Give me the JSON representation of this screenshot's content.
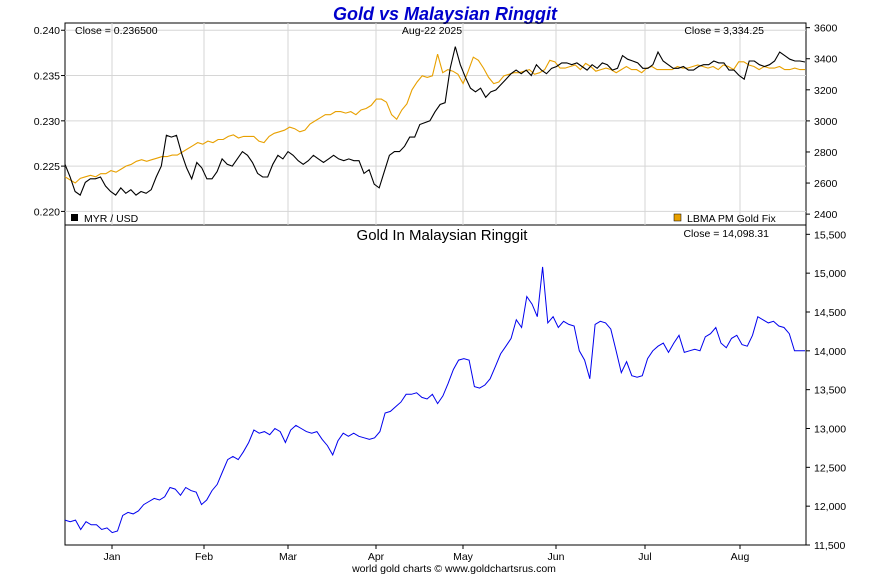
{
  "chart_data": [
    {
      "type": "line",
      "title": "Gold vs Malaysian Ringgit",
      "date_label": "Aug-22  2025",
      "close_left": "Close = 0.236500",
      "close_right": "Close = 3,334.25",
      "x_ticks": [
        "Jan",
        "Feb",
        "Mar",
        "Apr",
        "May",
        "Jun",
        "Jul",
        "Aug"
      ],
      "y_left": {
        "ylim": [
          0.2185,
          0.2408
        ],
        "ticks": [
          "0.220",
          "0.225",
          "0.230",
          "0.235",
          "0.240"
        ],
        "tick_values": [
          0.22,
          0.225,
          0.23,
          0.235,
          0.24
        ]
      },
      "y_right": {
        "ylim": [
          2330,
          3630
        ],
        "ticks": [
          "2400",
          "2600",
          "2800",
          "3000",
          "3200",
          "3400",
          "3600"
        ],
        "tick_values": [
          2400,
          2600,
          2800,
          3000,
          3200,
          3400,
          3600
        ]
      },
      "grid": true,
      "legend_position": "bottom",
      "series": [
        {
          "name": "MYR / USD",
          "color": "#000000",
          "axis": "left",
          "values": [
            0.2252,
            0.2238,
            0.2222,
            0.2218,
            0.2232,
            0.2236,
            0.2236,
            0.2238,
            0.2228,
            0.2222,
            0.2218,
            0.2226,
            0.222,
            0.2224,
            0.2218,
            0.2222,
            0.222,
            0.2224,
            0.2238,
            0.225,
            0.2284,
            0.2282,
            0.2284,
            0.2264,
            0.2248,
            0.2236,
            0.2254,
            0.2248,
            0.2236,
            0.2236,
            0.2244,
            0.2258,
            0.2252,
            0.225,
            0.2258,
            0.2266,
            0.2262,
            0.2254,
            0.2242,
            0.2238,
            0.2238,
            0.2252,
            0.2262,
            0.2258,
            0.2266,
            0.2262,
            0.2256,
            0.2252,
            0.2256,
            0.2262,
            0.2258,
            0.2254,
            0.2258,
            0.2262,
            0.2258,
            0.2256,
            0.2258,
            0.2256,
            0.2256,
            0.2242,
            0.2246,
            0.223,
            0.2226,
            0.2244,
            0.2262,
            0.2266,
            0.2266,
            0.2272,
            0.2282,
            0.2282,
            0.2296,
            0.2298,
            0.23,
            0.231,
            0.2318,
            0.232,
            0.2358,
            0.2382,
            0.2362,
            0.2348,
            0.2336,
            0.2332,
            0.2336,
            0.2326,
            0.2332,
            0.2334,
            0.234,
            0.2346,
            0.2352,
            0.2356,
            0.2352,
            0.2356,
            0.235,
            0.2362,
            0.2356,
            0.2352,
            0.2358,
            0.236,
            0.2364,
            0.2364,
            0.2362,
            0.2364,
            0.236,
            0.2356,
            0.2362,
            0.2358,
            0.2364,
            0.2362,
            0.2356,
            0.2358,
            0.2372,
            0.2368,
            0.2366,
            0.2364,
            0.2358,
            0.2358,
            0.2362,
            0.2376,
            0.2366,
            0.2362,
            0.2358,
            0.2358,
            0.236,
            0.2356,
            0.2356,
            0.236,
            0.2362,
            0.2362,
            0.2366,
            0.2364,
            0.2364,
            0.2356,
            0.2356,
            0.235,
            0.2346,
            0.2366,
            0.2366,
            0.2362,
            0.236,
            0.2362,
            0.2366,
            0.2376,
            0.2372,
            0.2368,
            0.2366,
            0.2366,
            0.2365
          ]
        },
        {
          "name": "LBMA PM Gold Fix",
          "color": "#e8a000",
          "axis": "right",
          "values": [
            2640,
            2620,
            2600,
            2630,
            2640,
            2650,
            2640,
            2660,
            2660,
            2680,
            2670,
            2690,
            2710,
            2720,
            2740,
            2750,
            2740,
            2750,
            2760,
            2770,
            2770,
            2780,
            2780,
            2800,
            2820,
            2840,
            2860,
            2850,
            2870,
            2860,
            2880,
            2880,
            2900,
            2910,
            2890,
            2900,
            2900,
            2900,
            2870,
            2860,
            2900,
            2920,
            2930,
            2940,
            2960,
            2950,
            2930,
            2940,
            2980,
            3000,
            3020,
            3040,
            3040,
            3060,
            3060,
            3050,
            3060,
            3040,
            3070,
            3080,
            3100,
            3140,
            3140,
            3120,
            3040,
            3010,
            3070,
            3110,
            3200,
            3250,
            3290,
            3280,
            3290,
            3430,
            3310,
            3330,
            3320,
            3300,
            3240,
            3320,
            3410,
            3390,
            3340,
            3280,
            3240,
            3250,
            3290,
            3300,
            3310,
            3310,
            3320,
            3330,
            3300,
            3310,
            3330,
            3390,
            3380,
            3340,
            3340,
            3350,
            3360,
            3330,
            3370,
            3350,
            3320,
            3330,
            3340,
            3330,
            3310,
            3330,
            3350,
            3330,
            3330,
            3310,
            3340,
            3350,
            3330,
            3330,
            3330,
            3330,
            3350,
            3340,
            3340,
            3350,
            3360,
            3350,
            3340,
            3350,
            3330,
            3360,
            3350,
            3330,
            3380,
            3380,
            3360,
            3350,
            3330,
            3350,
            3340,
            3340,
            3350,
            3330,
            3330,
            3340,
            3330,
            3330
          ]
        }
      ],
      "x_axis_label_positions_note": ""
    },
    {
      "type": "line",
      "title": "Gold In Malaysian Ringgit",
      "close_right": "Close = 14,098.31",
      "ylim": [
        11500,
        15620
      ],
      "y_ticks": [
        "11,500",
        "12,000",
        "12,500",
        "13,000",
        "13,500",
        "14,000",
        "14,500",
        "15,000",
        "15,500"
      ],
      "y_tick_values": [
        11500,
        12000,
        12500,
        13000,
        13500,
        14000,
        14500,
        15000,
        15500
      ],
      "x_ticks": [
        "Jan",
        "Feb",
        "Mar",
        "Apr",
        "May",
        "Jun",
        "Jul",
        "Aug"
      ],
      "grid": false,
      "series": [
        {
          "name": "",
          "color": "#0000ee",
          "values": [
            11820,
            11800,
            11820,
            11700,
            11800,
            11760,
            11760,
            11700,
            11720,
            11660,
            11680,
            11880,
            11920,
            11900,
            11940,
            12020,
            12060,
            12100,
            12080,
            12120,
            12240,
            12220,
            12140,
            12240,
            12200,
            12180,
            12020,
            12080,
            12200,
            12280,
            12440,
            12600,
            12640,
            12600,
            12700,
            12820,
            12980,
            12940,
            12960,
            12920,
            13000,
            12960,
            12820,
            12980,
            13040,
            13000,
            12960,
            12940,
            12960,
            12860,
            12780,
            12660,
            12840,
            12940,
            12900,
            12940,
            12900,
            12880,
            12860,
            12880,
            12960,
            13200,
            13220,
            13280,
            13340,
            13440,
            13440,
            13460,
            13400,
            13380,
            13440,
            13320,
            13420,
            13580,
            13760,
            13880,
            13900,
            13880,
            13540,
            13520,
            13560,
            13640,
            13800,
            13960,
            14060,
            14160,
            14400,
            14300,
            14700,
            14600,
            14440,
            15080,
            14360,
            14440,
            14300,
            14380,
            14340,
            14320,
            14000,
            13880,
            13640,
            14340,
            14380,
            14360,
            14280,
            14000,
            13720,
            13860,
            13680,
            13660,
            13680,
            13900,
            14000,
            14060,
            14100,
            13980,
            14100,
            14200,
            13980,
            14000,
            14020,
            14000,
            14180,
            14220,
            14300,
            14100,
            14040,
            14160,
            14200,
            14080,
            14060,
            14200,
            14440,
            14400,
            14360,
            14380,
            14320,
            14300,
            14220,
            14000,
            14000,
            14000
          ]
        }
      ]
    }
  ],
  "legend": {
    "left_label": "MYR / USD",
    "right_label": "LBMA PM Gold Fix",
    "left_color": "#000000",
    "right_color": "#e8a000"
  },
  "footer": "world gold charts © www.goldchartsrus.com"
}
